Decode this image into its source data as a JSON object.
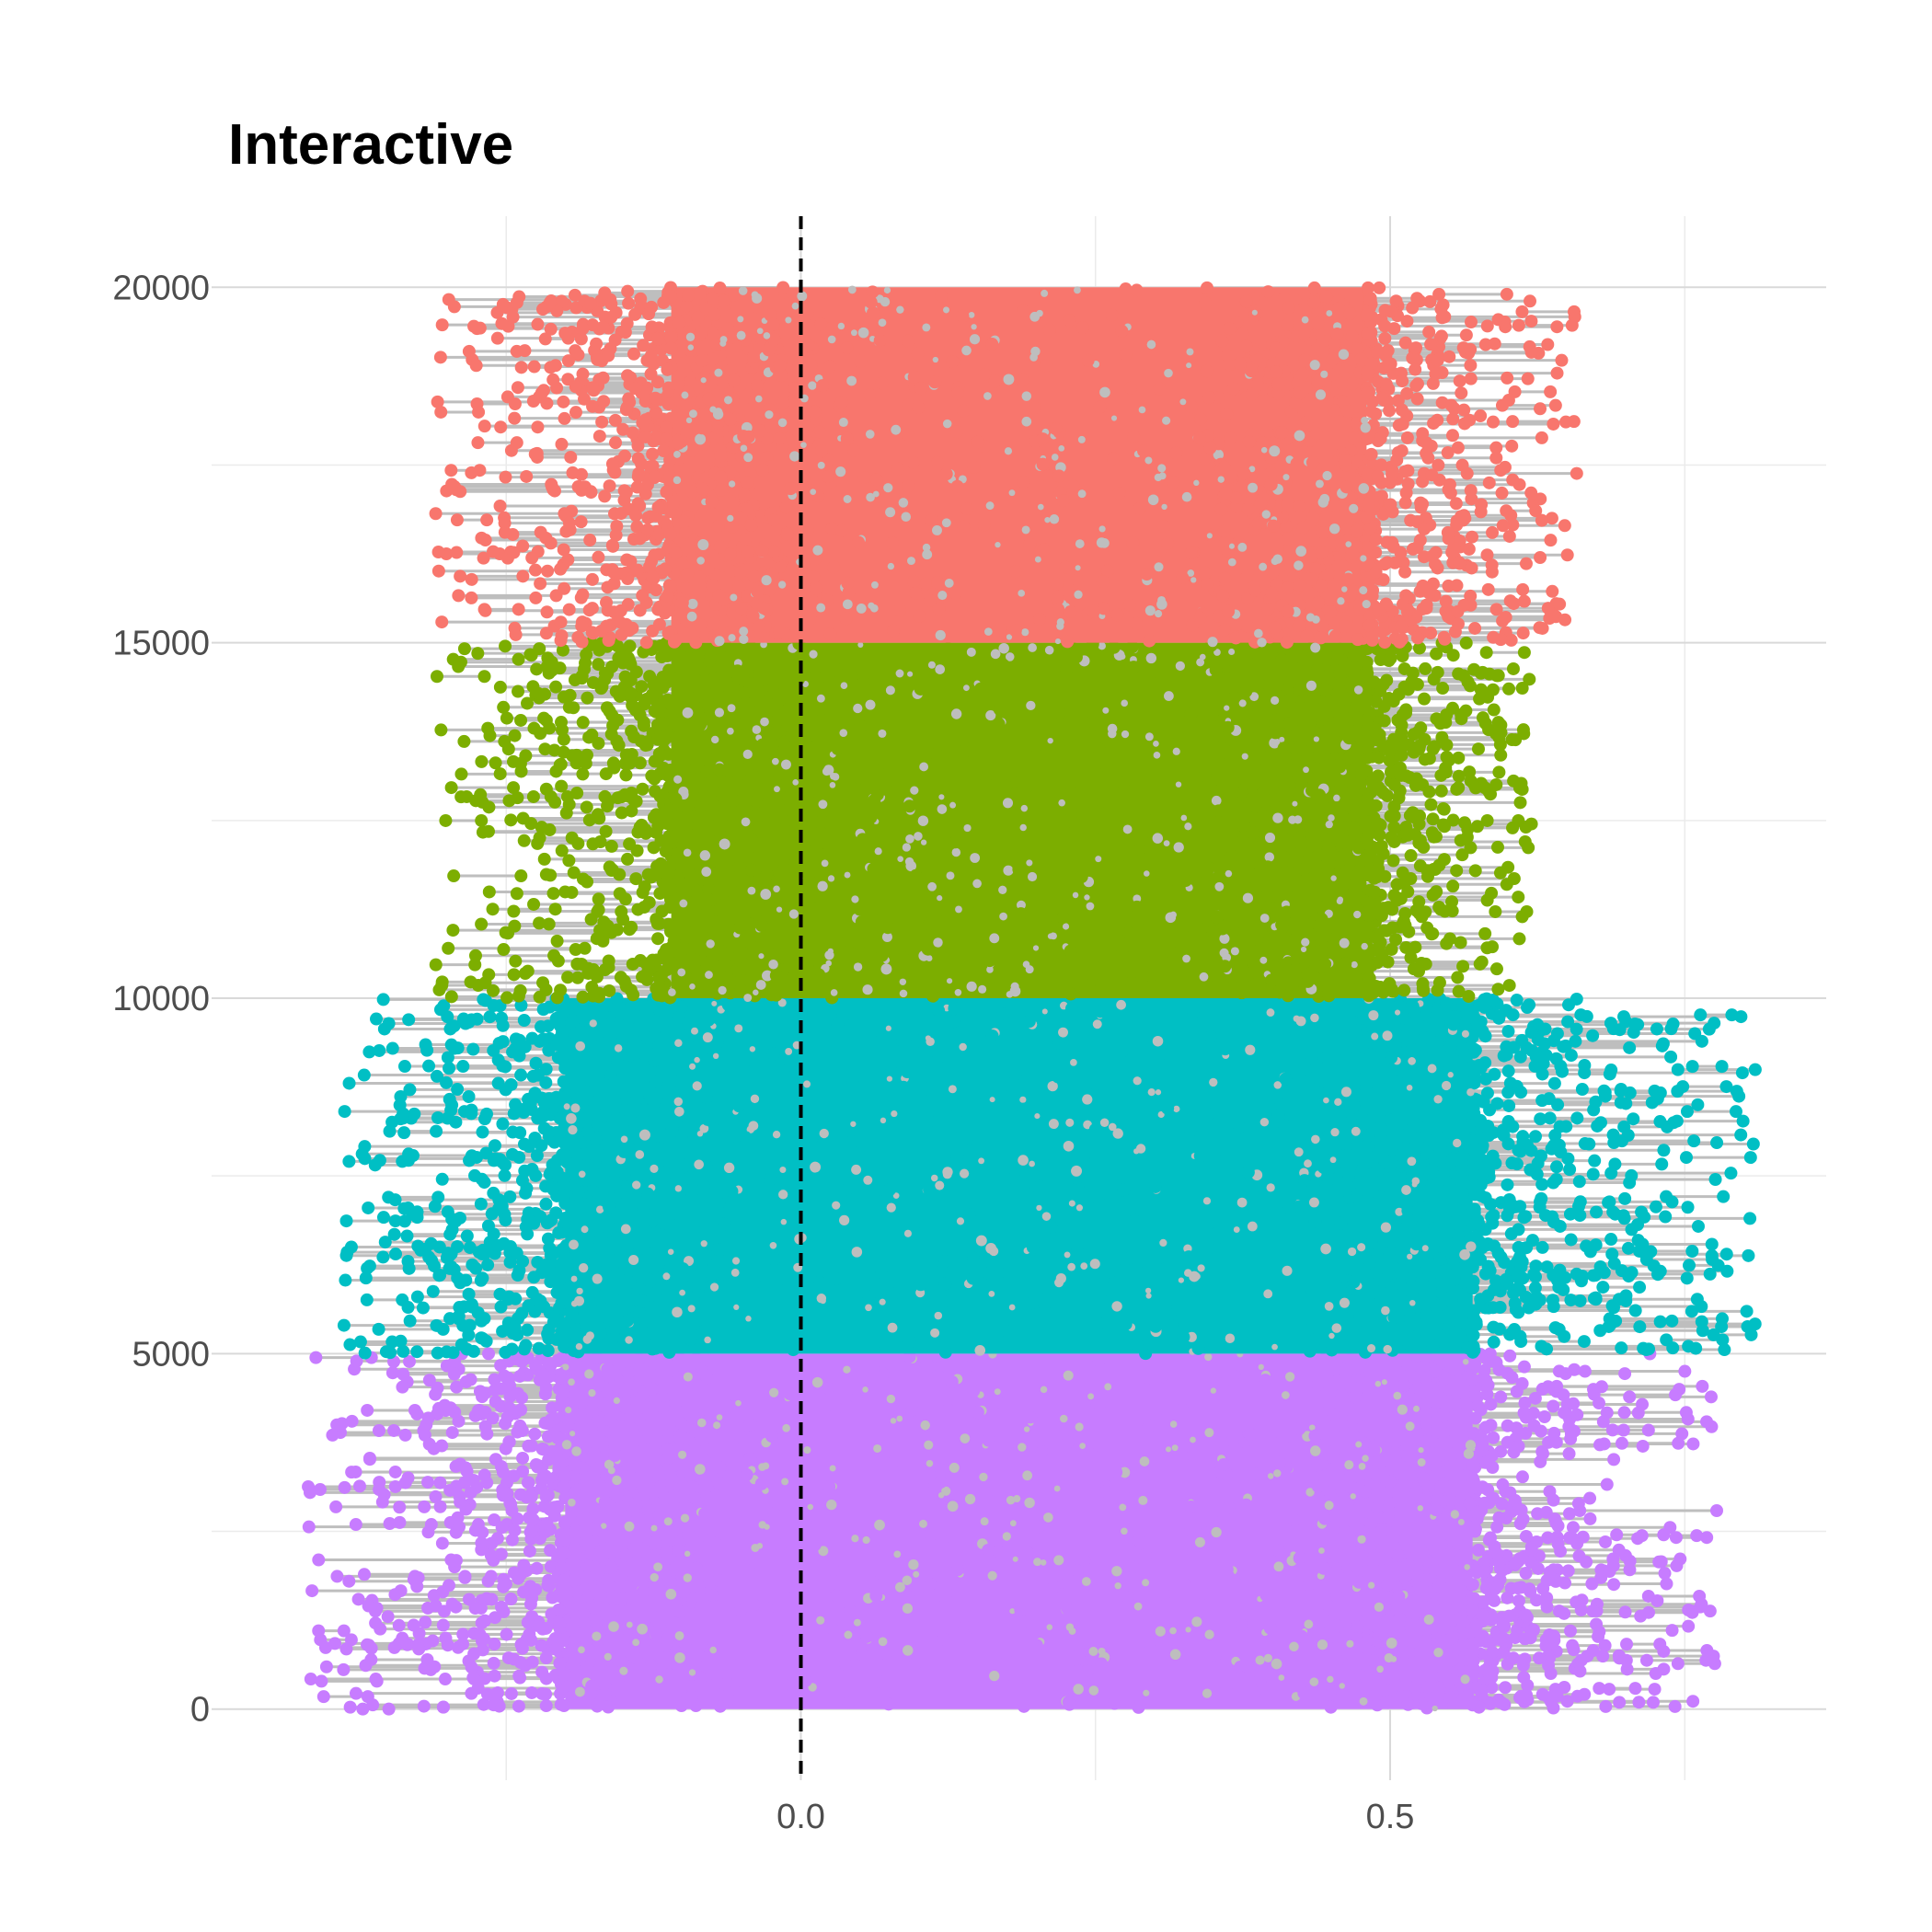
{
  "chart_data": {
    "type": "scatter",
    "title": "Interactive",
    "xlabel": "",
    "ylabel": "",
    "x_ticks": [
      0.0,
      0.5
    ],
    "x_tick_labels": [
      "0.0",
      "0.5"
    ],
    "x_minor_gridlines": [
      -0.25,
      0.25,
      0.75
    ],
    "y_ticks": [
      0,
      5000,
      10000,
      15000,
      20000
    ],
    "y_tick_labels": [
      "0",
      "5000",
      "10000",
      "15000",
      "20000"
    ],
    "y_minor_gridlines": [
      2500,
      7500,
      12500,
      17500
    ],
    "xlim": [
      -0.5,
      0.87
    ],
    "ylim": [
      -1000,
      21000
    ],
    "grid": true,
    "legend": "none",
    "reference_line": {
      "x": 0,
      "style": "dashed",
      "color": "#000000"
    },
    "segment_color": "#BEBEBE",
    "series": [
      {
        "color": "#C77CFF",
        "y_range": [
          0,
          5000
        ],
        "x_range": [
          -0.42,
          0.78
        ],
        "core_range": [
          -0.2,
          0.57
        ]
      },
      {
        "color": "#00BFC4",
        "y_range": [
          5000,
          10000
        ],
        "x_range": [
          -0.39,
          0.81
        ],
        "core_range": [
          -0.2,
          0.57
        ]
      },
      {
        "color": "#7CAE00",
        "y_range": [
          10000,
          15000
        ],
        "x_range": [
          -0.31,
          0.62
        ],
        "core_range": [
          -0.11,
          0.48
        ]
      },
      {
        "color": "#F8766D",
        "y_range": [
          15000,
          20000
        ],
        "x_range": [
          -0.31,
          0.66
        ],
        "core_range": [
          -0.11,
          0.48
        ]
      }
    ]
  }
}
